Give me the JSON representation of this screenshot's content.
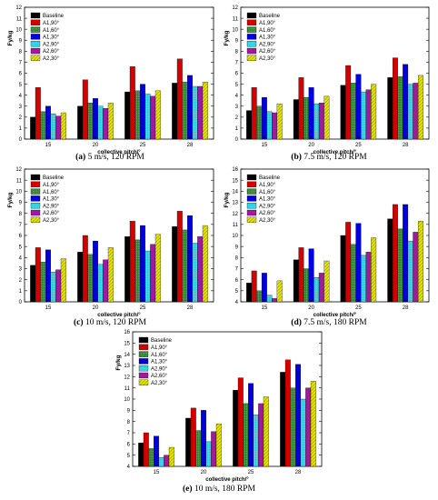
{
  "figure": {
    "legend": [
      "Baseline",
      "A1,90°",
      "A1,60°",
      "A1,30°",
      "A2,90°",
      "A2,60°",
      "A2,30°"
    ],
    "series_styles": [
      {
        "fill": "#000000",
        "pattern": "none"
      },
      {
        "fill": "#d40000",
        "pattern": "none"
      },
      {
        "fill": "#1a7a1a",
        "pattern": "dots"
      },
      {
        "fill": "#0000dd",
        "pattern": "none"
      },
      {
        "fill": "#1ec8d8",
        "pattern": "dots"
      },
      {
        "fill": "#a01aa0",
        "pattern": "none"
      },
      {
        "fill": "#e6e600",
        "pattern": "hatch"
      }
    ]
  },
  "chart_data": [
    {
      "type": "bar",
      "caption_letter": "(a)",
      "caption_text": " 5 m/s, 120 RPM",
      "xlabel": "collective pitch/°",
      "ylabel": "Fy/kg",
      "categories": [
        "15",
        "20",
        "25",
        "28"
      ],
      "ylim": [
        0,
        12
      ],
      "yticks": [
        0,
        1,
        2,
        3,
        4,
        5,
        6,
        7,
        8,
        9,
        10,
        11,
        12
      ],
      "series": [
        {
          "name": "Baseline",
          "values": [
            2.0,
            3.0,
            4.3,
            5.1
          ]
        },
        {
          "name": "A1,90°",
          "values": [
            4.7,
            5.4,
            6.6,
            7.3
          ]
        },
        {
          "name": "A1,60°",
          "values": [
            2.5,
            3.3,
            4.4,
            5.2
          ]
        },
        {
          "name": "A1,30°",
          "values": [
            3.0,
            3.7,
            5.0,
            5.8
          ]
        },
        {
          "name": "A2,90°",
          "values": [
            2.3,
            3.0,
            4.1,
            4.8
          ]
        },
        {
          "name": "A2,60°",
          "values": [
            2.1,
            2.8,
            3.9,
            4.8
          ]
        },
        {
          "name": "A2,30°",
          "values": [
            2.4,
            3.3,
            4.4,
            5.2
          ]
        }
      ]
    },
    {
      "type": "bar",
      "caption_letter": "(b)",
      "caption_text": " 7.5 m/s, 120 RPM",
      "xlabel": "collective pitch/°",
      "ylabel": "Fy/kg",
      "categories": [
        "15",
        "20",
        "25",
        "28"
      ],
      "ylim": [
        0,
        12
      ],
      "yticks": [
        0,
        1,
        2,
        3,
        4,
        5,
        6,
        7,
        8,
        9,
        10,
        11,
        12
      ],
      "series": [
        {
          "name": "Baseline",
          "values": [
            2.6,
            3.6,
            4.9,
            5.6
          ]
        },
        {
          "name": "A1,90°",
          "values": [
            4.7,
            5.6,
            6.7,
            7.4
          ]
        },
        {
          "name": "A1,60°",
          "values": [
            3.0,
            3.8,
            5.1,
            5.7
          ]
        },
        {
          "name": "A1,30°",
          "values": [
            3.8,
            4.7,
            5.9,
            6.8
          ]
        },
        {
          "name": "A2,90°",
          "values": [
            2.5,
            3.2,
            4.3,
            5.0
          ]
        },
        {
          "name": "A2,60°",
          "values": [
            2.4,
            3.3,
            4.5,
            5.1
          ]
        },
        {
          "name": "A2,30°",
          "values": [
            3.2,
            3.9,
            5.0,
            5.8
          ]
        }
      ]
    },
    {
      "type": "bar",
      "caption_letter": "(c)",
      "caption_text": " 10 m/s, 120 RPM",
      "xlabel": "collective pitch/°",
      "ylabel": "Fy/kg",
      "categories": [
        "15",
        "20",
        "25",
        "28"
      ],
      "ylim": [
        0,
        12
      ],
      "yticks": [
        0,
        1,
        2,
        3,
        4,
        5,
        6,
        7,
        8,
        9,
        10,
        11,
        12
      ],
      "series": [
        {
          "name": "Baseline",
          "values": [
            3.3,
            4.5,
            5.9,
            6.8
          ]
        },
        {
          "name": "A1,90°",
          "values": [
            4.9,
            6.0,
            7.3,
            8.2
          ]
        },
        {
          "name": "A1,60°",
          "values": [
            3.6,
            4.3,
            5.6,
            6.5
          ]
        },
        {
          "name": "A1,30°",
          "values": [
            4.7,
            5.5,
            6.9,
            7.8
          ]
        },
        {
          "name": "A2,90°",
          "values": [
            2.7,
            3.4,
            4.6,
            5.3
          ]
        },
        {
          "name": "A2,60°",
          "values": [
            2.9,
            3.8,
            5.2,
            5.9
          ]
        },
        {
          "name": "A2,30°",
          "values": [
            3.9,
            4.9,
            6.1,
            6.9
          ]
        }
      ]
    },
    {
      "type": "bar",
      "caption_letter": "(d)",
      "caption_text": " 7.5 m/s, 180 RPM",
      "xlabel": "collective pitch/°",
      "ylabel": "Fy/kg",
      "categories": [
        "15",
        "20",
        "25",
        "28"
      ],
      "ylim": [
        4,
        16
      ],
      "yticks": [
        4,
        5,
        6,
        7,
        8,
        9,
        10,
        11,
        12,
        13,
        14,
        15,
        16
      ],
      "series": [
        {
          "name": "Baseline",
          "values": [
            5.7,
            7.8,
            10.0,
            11.5
          ]
        },
        {
          "name": "A1,90°",
          "values": [
            6.8,
            8.9,
            11.2,
            12.8
          ]
        },
        {
          "name": "A1,60°",
          "values": [
            5.0,
            7.0,
            9.2,
            10.6
          ]
        },
        {
          "name": "A1,30°",
          "values": [
            6.6,
            8.8,
            11.1,
            12.8
          ]
        },
        {
          "name": "A2,90°",
          "values": [
            4.6,
            6.2,
            8.2,
            9.5
          ]
        },
        {
          "name": "A2,60°",
          "values": [
            4.3,
            6.6,
            8.5,
            10.3
          ]
        },
        {
          "name": "A2,30°",
          "values": [
            5.9,
            7.7,
            9.8,
            11.3
          ]
        }
      ]
    },
    {
      "type": "bar",
      "caption_letter": "(e)",
      "caption_text": " 10 m/s, 180 RPM",
      "xlabel": "collective pitch/°",
      "ylabel": "Fy/kg",
      "categories": [
        "15",
        "20",
        "25",
        "28"
      ],
      "ylim": [
        4,
        16
      ],
      "yticks": [
        4,
        5,
        6,
        7,
        8,
        9,
        10,
        11,
        12,
        13,
        14,
        15,
        16
      ],
      "series": [
        {
          "name": "Baseline",
          "values": [
            6.1,
            8.3,
            10.8,
            12.4
          ]
        },
        {
          "name": "A1,90°",
          "values": [
            7.0,
            9.2,
            11.9,
            13.5
          ]
        },
        {
          "name": "A1,60°",
          "values": [
            5.6,
            7.2,
            9.6,
            11.0
          ]
        },
        {
          "name": "A1,30°",
          "values": [
            6.7,
            9.0,
            11.4,
            13.1
          ]
        },
        {
          "name": "A2,90°",
          "values": [
            4.8,
            6.2,
            8.6,
            10.0
          ]
        },
        {
          "name": "A2,60°",
          "values": [
            5.0,
            7.1,
            9.6,
            11.0
          ]
        },
        {
          "name": "A2,30°",
          "values": [
            5.7,
            7.8,
            10.2,
            11.6
          ]
        }
      ]
    }
  ]
}
